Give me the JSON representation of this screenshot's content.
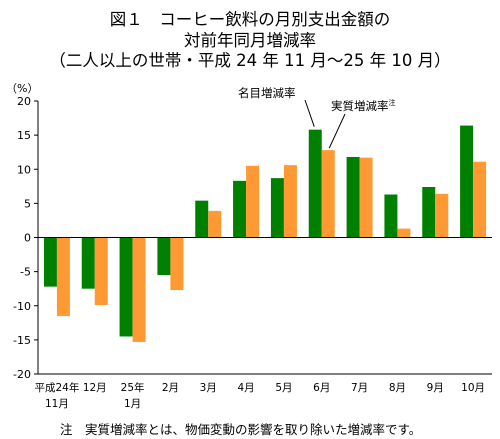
{
  "title": {
    "line1": "図１　コーヒー飲料の月別支出金額の",
    "line2": "対前年同月増減率",
    "line3": "（二人以上の世帯・平成 24 年 11 月～25 年 10 月）"
  },
  "note": "注　実質増減率とは、物価変動の影響を取り除いた増減率です。",
  "colors": {
    "nominal": "#008000",
    "real": "#ff9933"
  },
  "chart_data": {
    "type": "bar",
    "ylabel": "（%）",
    "ylim": [
      -20,
      20
    ],
    "yticks": [
      20,
      15,
      10,
      5,
      0,
      -5,
      -10,
      -15,
      -20
    ],
    "categories": [
      "平成24年11月",
      "12月",
      "25年1月",
      "2月",
      "3月",
      "4月",
      "5月",
      "6月",
      "7月",
      "8月",
      "9月",
      "10月"
    ],
    "category_labels": [
      [
        "平成24年",
        "11月"
      ],
      [
        "12月"
      ],
      [
        "25年",
        "1月"
      ],
      [
        "2月"
      ],
      [
        "3月"
      ],
      [
        "4月"
      ],
      [
        "5月"
      ],
      [
        "6月"
      ],
      [
        "7月"
      ],
      [
        "8月"
      ],
      [
        "9月"
      ],
      [
        "10月"
      ]
    ],
    "series": [
      {
        "name": "名目増減率",
        "values": [
          -7.2,
          -7.5,
          -14.5,
          -5.5,
          5.4,
          8.3,
          8.7,
          15.8,
          11.8,
          6.3,
          7.4,
          16.4
        ]
      },
      {
        "name": "実質増減率",
        "annotation_suffix": "注",
        "values": [
          -11.5,
          -9.9,
          -15.3,
          -7.7,
          3.9,
          10.5,
          10.6,
          12.8,
          11.7,
          1.3,
          6.4,
          11.1
        ]
      }
    ]
  }
}
